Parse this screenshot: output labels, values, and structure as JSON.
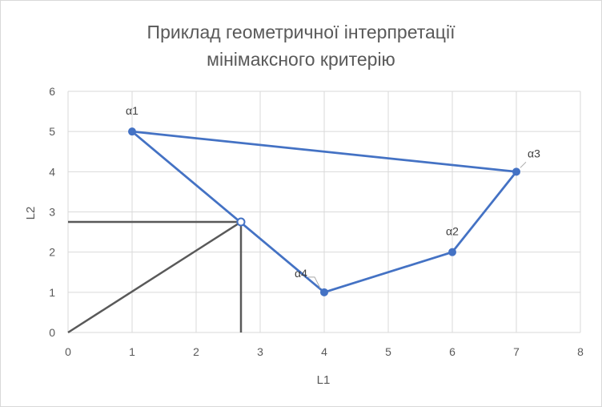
{
  "chart_data": {
    "type": "scatter",
    "title_line1": "Приклад геометричної інтерпретації",
    "title_line2": "мінімаксного критерію",
    "xlabel": "L1",
    "ylabel": "L2",
    "xlim": [
      0,
      8
    ],
    "ylim": [
      0,
      6
    ],
    "xticks": [
      0,
      1,
      2,
      3,
      4,
      5,
      6,
      7,
      8
    ],
    "yticks": [
      0,
      1,
      2,
      3,
      4,
      5,
      6
    ],
    "grid": true,
    "series": [
      {
        "color": "#4472C4",
        "points": [
          {
            "x": 1,
            "y": 5,
            "label": "α1"
          },
          {
            "x": 6,
            "y": 2,
            "label": "α2"
          },
          {
            "x": 7,
            "y": 4,
            "label": "α3"
          },
          {
            "x": 4,
            "y": 1,
            "label": "α4"
          }
        ],
        "polygon_order": [
          0,
          2,
          1,
          3
        ]
      }
    ],
    "minimax_point": {
      "x": 2.7,
      "y": 2.75
    },
    "helper_color": "#595959"
  }
}
